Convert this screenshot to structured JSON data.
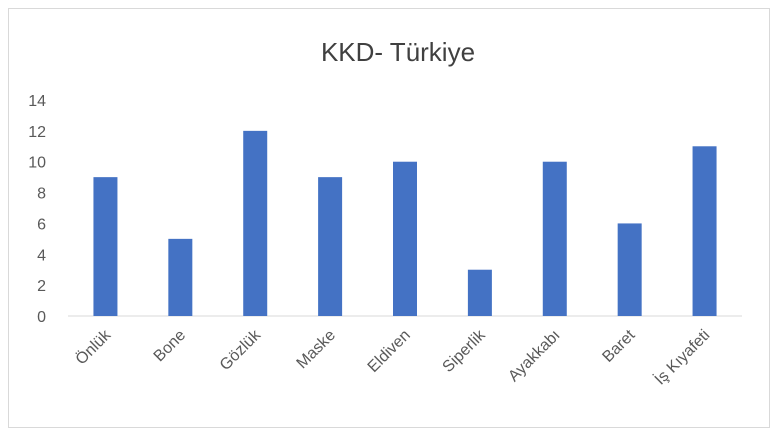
{
  "chart_data": {
    "type": "bar",
    "title": "KKD- Türkiye",
    "categories": [
      "Önlük",
      "Bone",
      "Gözlük",
      "Maske",
      "Eldiven",
      "Siperlik",
      "Ayakkabı",
      "Baret",
      "İş Kıyafeti"
    ],
    "values": [
      9,
      5,
      12,
      9,
      10,
      3,
      10,
      6,
      11
    ],
    "yticks": [
      "0",
      "2",
      "4",
      "6",
      "8",
      "10",
      "12",
      "14"
    ],
    "ylim": [
      0,
      14
    ],
    "xlabel": "",
    "ylabel": "",
    "grid": false,
    "legend": "none",
    "bar_color": "#4472c4",
    "axis_color": "#d9d9d9"
  }
}
